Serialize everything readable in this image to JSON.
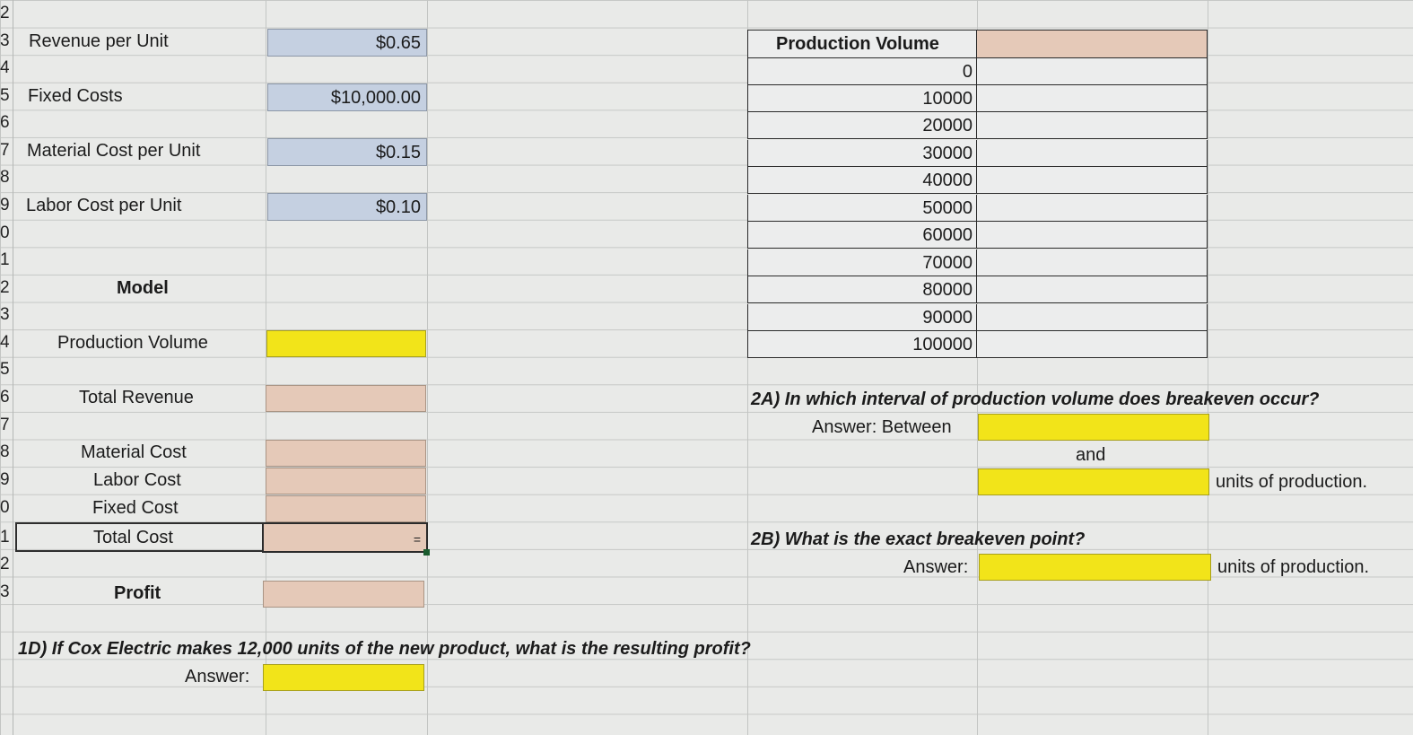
{
  "row_numbers": [
    "2",
    "3",
    "4",
    "5",
    "6",
    "7",
    "8",
    "9",
    "0",
    "1",
    "2",
    "3",
    "4",
    "5",
    "6",
    "7",
    "8",
    "9",
    "0",
    "1",
    "2",
    "3"
  ],
  "inputs": [
    {
      "label": "Revenue per Unit",
      "value": "$0.65"
    },
    {
      "label": "Fixed Costs",
      "value": "$10,000.00"
    },
    {
      "label": "Material Cost per Unit",
      "value": "$0.15"
    },
    {
      "label": "Labor Cost per Unit",
      "value": "$0.10"
    }
  ],
  "model": {
    "heading": "Model",
    "production_volume": "Production Volume",
    "total_revenue": "Total Revenue",
    "material_cost": "Material Cost",
    "labor_cost": "Labor Cost",
    "fixed_cost": "Fixed Cost",
    "total_cost": "Total Cost",
    "total_cost_value": "=",
    "profit": "Profit"
  },
  "q1d": {
    "question": "1D) If Cox Electric makes 12,000 units of the new product, what is the resulting profit?",
    "answer_label": "Answer:"
  },
  "table": {
    "header": "Production Volume",
    "volumes": [
      "0",
      "10000",
      "20000",
      "30000",
      "40000",
      "50000",
      "60000",
      "70000",
      "80000",
      "90000",
      "100000"
    ]
  },
  "q2a": {
    "question": "2A) In which interval of production volume does breakeven occur?",
    "answer_label": "Answer: Between",
    "and": "and",
    "units": "units of production."
  },
  "q2b": {
    "question": "2B) What is the exact breakeven point?",
    "answer_label": "Answer:",
    "units": "units of production."
  },
  "colors": {
    "input_blue": "#c5d0e1",
    "formula_salmon": "#e5c9b8",
    "answer_yellow": "#f2e419",
    "gridline": "#c3c5c3"
  }
}
